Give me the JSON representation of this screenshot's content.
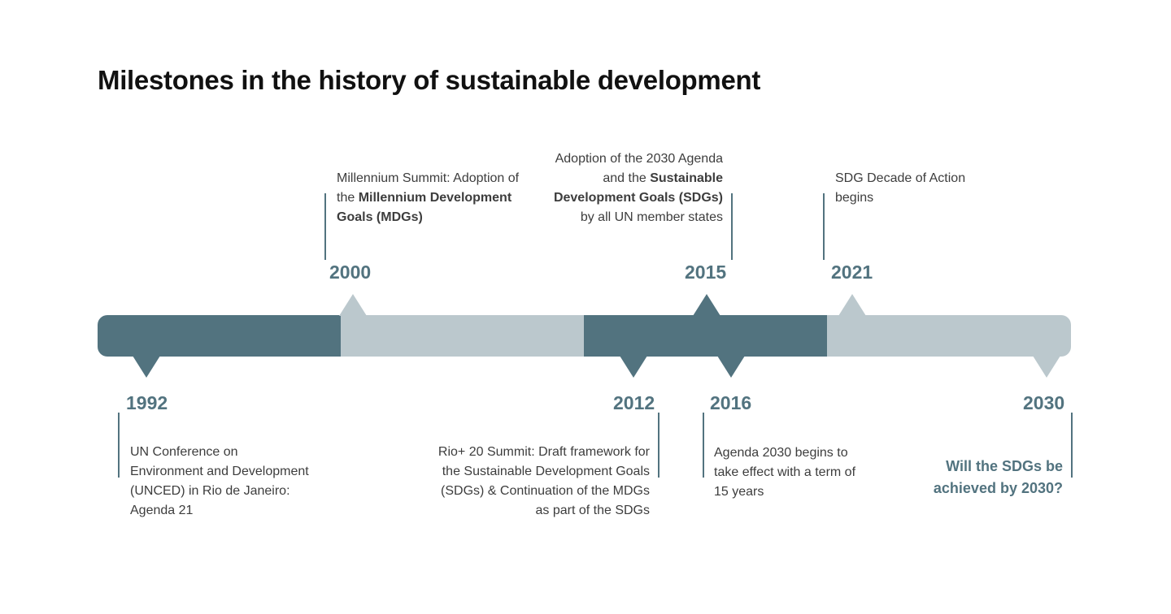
{
  "title": "Milestones in the history of sustainable development",
  "colors": {
    "dark_segment": "#52737f",
    "light_segment": "#bbc8cd",
    "year_text": "#52737f",
    "body_text": "#3d3d3d"
  },
  "milestones": {
    "m1992": {
      "year": "1992",
      "text": "UN Conference on Environment and Development (UNCED) in Rio de Janeiro: Agenda 21"
    },
    "m2000": {
      "year": "2000",
      "text_before": "Millennium Summit: Adoption of the ",
      "text_bold": "Millennium Development Goals (MDGs)"
    },
    "m2012": {
      "year": "2012",
      "text": "Rio+ 20 Summit: Draft framework for the Sustainable Development Goals (SDGs) & Continuation of the MDGs as part of the SDGs"
    },
    "m2015": {
      "year": "2015",
      "text_before": "Adoption of the 2030 Agenda and the ",
      "text_bold": "Sustainable Development Goals (SDGs)",
      "text_after": " by all UN member states"
    },
    "m2016": {
      "year": "2016",
      "text": "Agenda 2030 begins to take effect with a term of 15 years"
    },
    "m2021": {
      "year": "2021",
      "text": "SDG Decade of Action begins"
    },
    "m2030": {
      "year": "2030",
      "text": "Will the SDGs be achieved by 2030?"
    }
  }
}
